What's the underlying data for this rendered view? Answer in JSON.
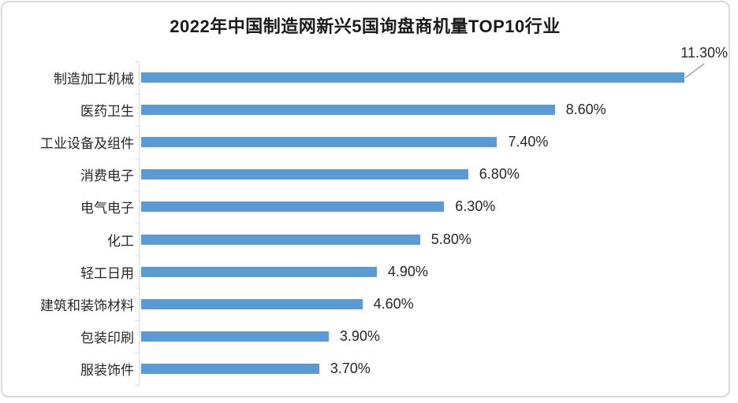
{
  "title": "2022年中国制造网新兴5国询盘商机量TOP10行业",
  "chart_data": {
    "type": "bar",
    "orientation": "horizontal",
    "title": "2022年中国制造网新兴5国询盘商机量TOP10行业",
    "categories": [
      "制造加工机械",
      "医药卫生",
      "工业设备及组件",
      "消费电子",
      "电气电子",
      "化工",
      "轻工日用",
      "建筑和装饰材料",
      "包装印刷",
      "服装饰件"
    ],
    "values": [
      11.3,
      8.6,
      7.4,
      6.8,
      6.3,
      5.8,
      4.9,
      4.6,
      3.9,
      3.7
    ],
    "labels": [
      "11.30%",
      "8.60%",
      "7.40%",
      "6.80%",
      "6.30%",
      "5.80%",
      "4.90%",
      "4.60%",
      "3.90%",
      "3.70%"
    ],
    "xlabel": "",
    "ylabel": "",
    "xlim": [
      0,
      12
    ],
    "grid": false,
    "legend": false,
    "data_labels": "outside-end",
    "first_label_callout": true,
    "bar_color": "#5B9BD5",
    "label_color": "#262626",
    "title_color": "#1a1a1a",
    "axis_color": "#D9D9D9",
    "border_color": "#D9D9D9",
    "leader_line_color": "#A6A6A6"
  }
}
